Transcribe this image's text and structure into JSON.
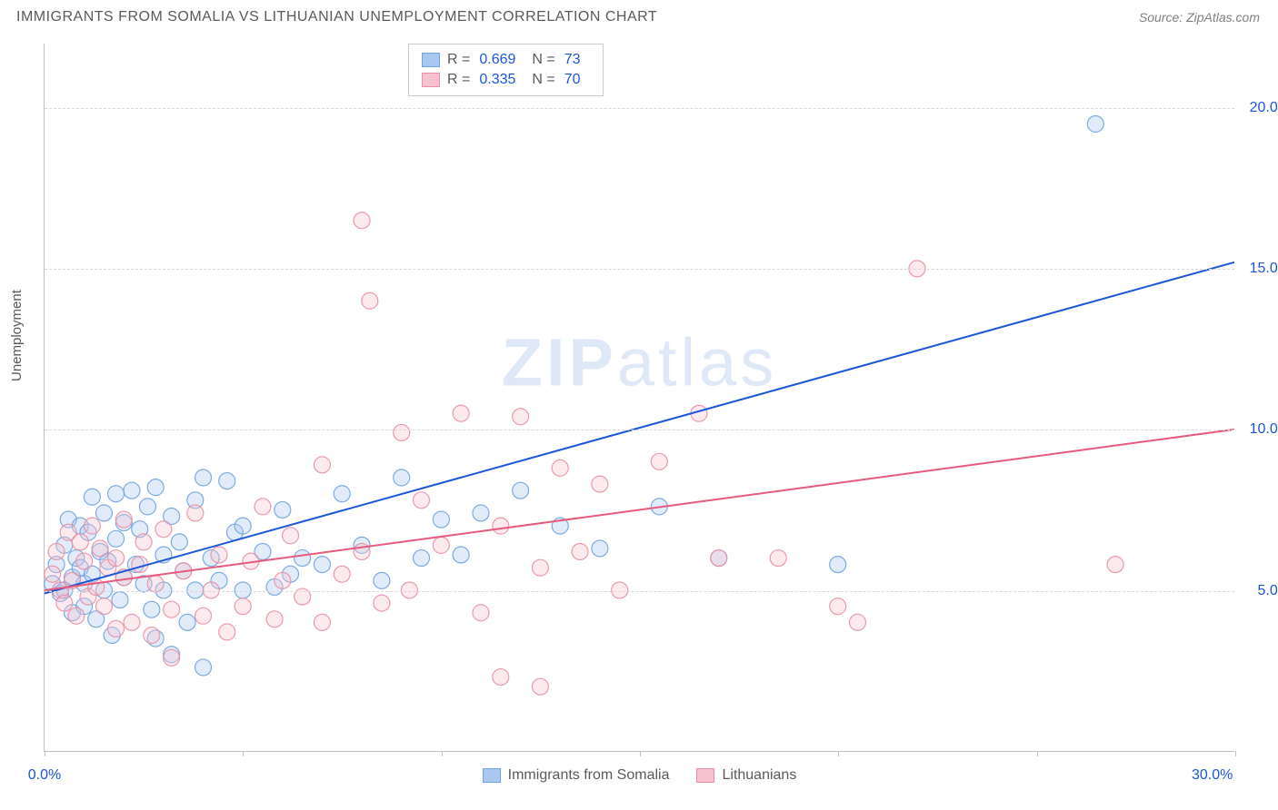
{
  "header": {
    "title": "IMMIGRANTS FROM SOMALIA VS LITHUANIAN UNEMPLOYMENT CORRELATION CHART",
    "source": "Source: ZipAtlas.com"
  },
  "chart": {
    "type": "scatter",
    "ylabel": "Unemployment",
    "xlim": [
      0,
      30
    ],
    "ylim": [
      0,
      22
    ],
    "xtick_positions": [
      0,
      5,
      10,
      15,
      20,
      25,
      30
    ],
    "xtick_labels_left": "0.0%",
    "xtick_labels_right": "30.0%",
    "ytick_values": [
      5,
      10,
      15,
      20
    ],
    "ytick_labels": [
      "5.0%",
      "10.0%",
      "15.0%",
      "20.0%"
    ],
    "grid_color": "#d8d8d8",
    "axis_color": "#c0c0c0",
    "background_color": "#ffffff",
    "marker_radius": 9,
    "marker_fill_opacity": 0.35,
    "marker_stroke_opacity": 0.9,
    "marker_stroke_width": 1.2,
    "line_width": 2,
    "watermark": "ZIPatlas",
    "series": [
      {
        "name": "Immigrants from Somalia",
        "color_fill": "#a9c7f0",
        "color_stroke": "#6fa3e0",
        "line_color": "#1a56d6",
        "R": "0.669",
        "N": "73",
        "trend": {
          "x1": 0,
          "y1": 4.9,
          "x2": 30,
          "y2": 15.2
        },
        "points": [
          [
            0.2,
            5.2
          ],
          [
            0.3,
            5.8
          ],
          [
            0.4,
            4.9
          ],
          [
            0.5,
            6.4
          ],
          [
            0.5,
            5.0
          ],
          [
            0.6,
            7.2
          ],
          [
            0.7,
            5.4
          ],
          [
            0.7,
            4.3
          ],
          [
            0.8,
            6.0
          ],
          [
            0.9,
            7.0
          ],
          [
            0.9,
            5.7
          ],
          [
            1.0,
            5.2
          ],
          [
            1.0,
            4.5
          ],
          [
            1.1,
            6.8
          ],
          [
            1.2,
            7.9
          ],
          [
            1.2,
            5.5
          ],
          [
            1.3,
            4.1
          ],
          [
            1.4,
            6.2
          ],
          [
            1.5,
            7.4
          ],
          [
            1.5,
            5.0
          ],
          [
            1.6,
            5.9
          ],
          [
            1.7,
            3.6
          ],
          [
            1.8,
            6.6
          ],
          [
            1.8,
            8.0
          ],
          [
            1.9,
            4.7
          ],
          [
            2.0,
            5.4
          ],
          [
            2.0,
            7.1
          ],
          [
            2.2,
            8.1
          ],
          [
            2.3,
            5.8
          ],
          [
            2.4,
            6.9
          ],
          [
            2.5,
            5.2
          ],
          [
            2.6,
            7.6
          ],
          [
            2.7,
            4.4
          ],
          [
            2.8,
            8.2
          ],
          [
            2.8,
            3.5
          ],
          [
            3.0,
            6.1
          ],
          [
            3.0,
            5.0
          ],
          [
            3.2,
            7.3
          ],
          [
            3.2,
            3.0
          ],
          [
            3.4,
            6.5
          ],
          [
            3.5,
            5.6
          ],
          [
            3.6,
            4.0
          ],
          [
            3.8,
            7.8
          ],
          [
            3.8,
            5.0
          ],
          [
            4.0,
            8.5
          ],
          [
            4.0,
            2.6
          ],
          [
            4.2,
            6.0
          ],
          [
            4.4,
            5.3
          ],
          [
            4.6,
            8.4
          ],
          [
            4.8,
            6.8
          ],
          [
            5.0,
            7.0
          ],
          [
            5.0,
            5.0
          ],
          [
            5.5,
            6.2
          ],
          [
            5.8,
            5.1
          ],
          [
            6.0,
            7.5
          ],
          [
            6.2,
            5.5
          ],
          [
            6.5,
            6.0
          ],
          [
            7.0,
            5.8
          ],
          [
            7.5,
            8.0
          ],
          [
            8.0,
            6.4
          ],
          [
            8.5,
            5.3
          ],
          [
            9.0,
            8.5
          ],
          [
            9.5,
            6.0
          ],
          [
            10.0,
            7.2
          ],
          [
            10.5,
            6.1
          ],
          [
            11.0,
            7.4
          ],
          [
            12.0,
            8.1
          ],
          [
            13.0,
            7.0
          ],
          [
            14.0,
            6.3
          ],
          [
            15.5,
            7.6
          ],
          [
            17.0,
            6.0
          ],
          [
            20.0,
            5.8
          ],
          [
            26.5,
            19.5
          ]
        ]
      },
      {
        "name": "Lithuanians",
        "color_fill": "#f5c3cf",
        "color_stroke": "#e890a5",
        "line_color": "#e85a7d",
        "R": "0.335",
        "N": "70",
        "trend": {
          "x1": 0,
          "y1": 5.0,
          "x2": 30,
          "y2": 10.0
        },
        "points": [
          [
            0.2,
            5.5
          ],
          [
            0.3,
            6.2
          ],
          [
            0.4,
            5.0
          ],
          [
            0.5,
            4.6
          ],
          [
            0.6,
            6.8
          ],
          [
            0.7,
            5.3
          ],
          [
            0.8,
            4.2
          ],
          [
            0.9,
            6.5
          ],
          [
            1.0,
            5.9
          ],
          [
            1.1,
            4.8
          ],
          [
            1.2,
            7.0
          ],
          [
            1.3,
            5.1
          ],
          [
            1.4,
            6.3
          ],
          [
            1.5,
            4.5
          ],
          [
            1.6,
            5.7
          ],
          [
            1.8,
            6.0
          ],
          [
            1.8,
            3.8
          ],
          [
            2.0,
            5.4
          ],
          [
            2.0,
            7.2
          ],
          [
            2.2,
            4.0
          ],
          [
            2.4,
            5.8
          ],
          [
            2.5,
            6.5
          ],
          [
            2.7,
            3.6
          ],
          [
            2.8,
            5.2
          ],
          [
            3.0,
            6.9
          ],
          [
            3.2,
            4.4
          ],
          [
            3.2,
            2.9
          ],
          [
            3.5,
            5.6
          ],
          [
            3.8,
            7.4
          ],
          [
            4.0,
            4.2
          ],
          [
            4.2,
            5.0
          ],
          [
            4.4,
            6.1
          ],
          [
            4.6,
            3.7
          ],
          [
            5.0,
            4.5
          ],
          [
            5.2,
            5.9
          ],
          [
            5.5,
            7.6
          ],
          [
            5.8,
            4.1
          ],
          [
            6.0,
            5.3
          ],
          [
            6.2,
            6.7
          ],
          [
            6.5,
            4.8
          ],
          [
            7.0,
            8.9
          ],
          [
            7.0,
            4.0
          ],
          [
            7.5,
            5.5
          ],
          [
            8.0,
            16.5
          ],
          [
            8.0,
            6.2
          ],
          [
            8.2,
            14.0
          ],
          [
            8.5,
            4.6
          ],
          [
            9.0,
            9.9
          ],
          [
            9.2,
            5.0
          ],
          [
            9.5,
            7.8
          ],
          [
            10.0,
            6.4
          ],
          [
            10.5,
            10.5
          ],
          [
            11.0,
            4.3
          ],
          [
            11.5,
            7.0
          ],
          [
            11.5,
            2.3
          ],
          [
            12.0,
            10.4
          ],
          [
            12.5,
            5.7
          ],
          [
            12.5,
            2.0
          ],
          [
            13.0,
            8.8
          ],
          [
            13.5,
            6.2
          ],
          [
            14.0,
            8.3
          ],
          [
            14.5,
            5.0
          ],
          [
            15.5,
            9.0
          ],
          [
            16.5,
            10.5
          ],
          [
            17.0,
            6.0
          ],
          [
            18.5,
            6.0
          ],
          [
            20.0,
            4.5
          ],
          [
            20.5,
            4.0
          ],
          [
            22.0,
            15.0
          ],
          [
            27.0,
            5.8
          ]
        ]
      }
    ],
    "legend_bottom": [
      {
        "label": "Immigrants from Somalia",
        "fill": "#a9c7f0",
        "stroke": "#6fa3e0"
      },
      {
        "label": "Lithuanians",
        "fill": "#f5c3cf",
        "stroke": "#e890a5"
      }
    ]
  }
}
